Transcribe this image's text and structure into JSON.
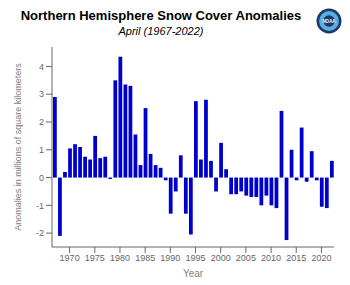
{
  "chart_data": {
    "type": "bar",
    "title": "Northern Hemisphere Snow Cover Anomalies",
    "subtitle": "April (1967-2022)",
    "xlabel": "Year",
    "ylabel": "Anomalies in millions of square kilometers",
    "color": "#0000cc",
    "x": [
      1967,
      1968,
      1969,
      1970,
      1971,
      1972,
      1973,
      1974,
      1975,
      1976,
      1977,
      1978,
      1979,
      1980,
      1981,
      1982,
      1983,
      1984,
      1985,
      1986,
      1987,
      1988,
      1989,
      1990,
      1991,
      1992,
      1993,
      1994,
      1995,
      1996,
      1997,
      1998,
      1999,
      2000,
      2001,
      2002,
      2003,
      2004,
      2005,
      2006,
      2007,
      2008,
      2009,
      2010,
      2011,
      2012,
      2013,
      2014,
      2015,
      2016,
      2017,
      2018,
      2019,
      2020,
      2021,
      2022
    ],
    "values": [
      2.9,
      -2.1,
      0.2,
      1.05,
      1.2,
      1.1,
      0.75,
      0.65,
      1.5,
      0.7,
      0.75,
      -0.05,
      3.5,
      4.35,
      3.35,
      3.3,
      1.55,
      0.45,
      2.5,
      0.85,
      0.45,
      0.35,
      -0.1,
      -1.3,
      -0.5,
      0.8,
      -1.3,
      -2.05,
      2.75,
      0.65,
      2.8,
      0.6,
      -0.5,
      1.25,
      0.3,
      -0.6,
      -0.6,
      -0.5,
      -0.65,
      -0.7,
      -0.7,
      -1.0,
      -0.65,
      -1.0,
      -1.1,
      2.4,
      -2.25,
      1.0,
      -0.1,
      1.8,
      -0.15,
      0.95,
      -0.1,
      -1.05,
      -1.1,
      0.6
    ],
    "xlim": [
      1966.5,
      2022.5
    ],
    "ylim": [
      -2.5,
      4.7
    ],
    "xticks": [
      1970,
      1975,
      1980,
      1985,
      1990,
      1995,
      2000,
      2005,
      2010,
      2015,
      2020
    ],
    "yticks": [
      -2.0,
      -1.0,
      0.0,
      1.0,
      2.0,
      3.0,
      4.0
    ],
    "grid": false,
    "annotations": [
      "NOAA"
    ]
  }
}
